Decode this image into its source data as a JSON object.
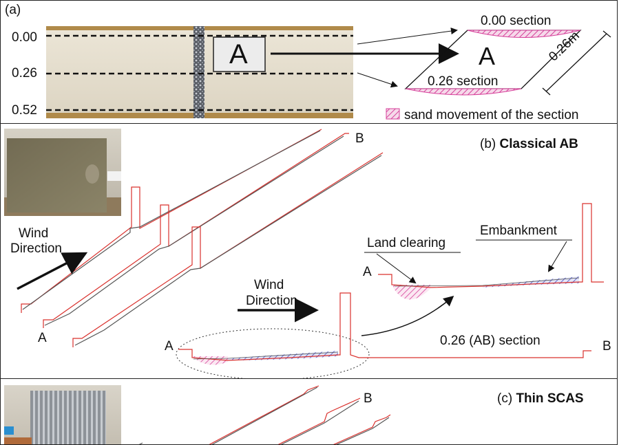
{
  "panel_a": {
    "label": "(a)",
    "rows": [
      "0.00",
      "0.26",
      "0.52"
    ],
    "box_label": "A",
    "section_top": "0.00 section",
    "section_bottom": "0.26 section",
    "section_center": "A",
    "dimension": "0.26m",
    "legend": "sand movement of the section"
  },
  "panel_b": {
    "label": "(b) ",
    "title": "Classical AB",
    "point_a_left": "A",
    "point_b_top": "B",
    "wind_left": [
      "Wind",
      "Direction"
    ],
    "wind_center": [
      "Wind",
      "Direction"
    ],
    "land_clearing": "Land clearing",
    "embankment": "Embankment",
    "detail_a": "A",
    "profile_a": "A",
    "profile_b": "B",
    "section_label": "0.26 (AB) section"
  },
  "panel_c": {
    "label": "(c) ",
    "title": "Thin SCAS",
    "point_b_top": "B"
  },
  "colors": {
    "profile_red": "#d9302c",
    "profile_gray": "#555555",
    "hatch_pink": "#d6409a",
    "hatch_blue": "#4a4fc4",
    "sand_board": "#e6dfd0",
    "wood": "#b08a4a"
  }
}
